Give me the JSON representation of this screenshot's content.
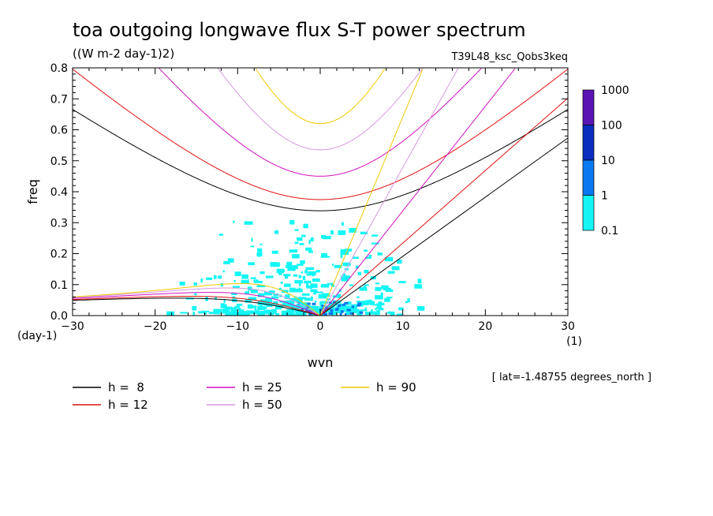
{
  "chart_data": {
    "type": "line",
    "title": "toa outgoing longwave flux S-T power spectrum",
    "subtitle": "((W m-2 day-1)2)",
    "run_label": "T39L48_ksc_Qobs3keq",
    "xlabel": "wvn",
    "ylabel": "freq",
    "x_unit": "(1)",
    "y_unit": "(day-1)",
    "xlim": [
      -30,
      30
    ],
    "ylim": [
      0,
      0.8
    ],
    "x_ticks": [
      "-30",
      "-20",
      "-10",
      "0",
      "10",
      "20",
      "30"
    ],
    "y_ticks": [
      "0.0",
      "0.1",
      "0.2",
      "0.3",
      "0.4",
      "0.5",
      "0.6",
      "0.7",
      "0.8"
    ],
    "note": "[ lat=-1.48755 degrees_north ]",
    "colorbar": {
      "labels": [
        "1000",
        "100",
        "10",
        "1",
        "0.1"
      ],
      "colors": [
        "#5a14b4",
        "#0a2dbe",
        "#0a78f0",
        "#14f5f5"
      ]
    },
    "spectrum_color": "#14f5f5",
    "series": [
      {
        "name": "h =  8",
        "h": 8,
        "color": "#000000"
      },
      {
        "name": "h = 12",
        "h": 12,
        "color": "#e01010"
      },
      {
        "name": "h = 25",
        "h": 25,
        "color": "#d010c0"
      },
      {
        "name": "h = 50",
        "h": 50,
        "color": "#d898e0"
      },
      {
        "name": "h = 90",
        "h": 90,
        "color": "#f0c800"
      }
    ],
    "dispersion_curves": {
      "kelvin_frequency": {
        "h=8": {
          "k": [
            0,
            30
          ],
          "freq": [
            0,
            0.57
          ]
        },
        "h=12": {
          "k": [
            0,
            30
          ],
          "freq": [
            0,
            0.7
          ]
        },
        "h=25": {
          "k": [
            0,
            18
          ],
          "freq": [
            0,
            0.8
          ]
        },
        "h=50": {
          "k": [
            0,
            16
          ],
          "freq": [
            0,
            0.8
          ]
        },
        "h=90": {
          "k": [
            0,
            12
          ],
          "freq": [
            0,
            0.8
          ]
        }
      },
      "inertio_gravity_min_freq": {
        "h=8": 0.333,
        "h=12": 0.368,
        "h=25": 0.44,
        "h=50": 0.525,
        "h=90": 0.61
      },
      "rossby_peak_freq": {
        "h=8": 0.06,
        "h=12": 0.065,
        "h=25": 0.075,
        "h=50": 0.09,
        "h=90": 0.105
      }
    }
  }
}
